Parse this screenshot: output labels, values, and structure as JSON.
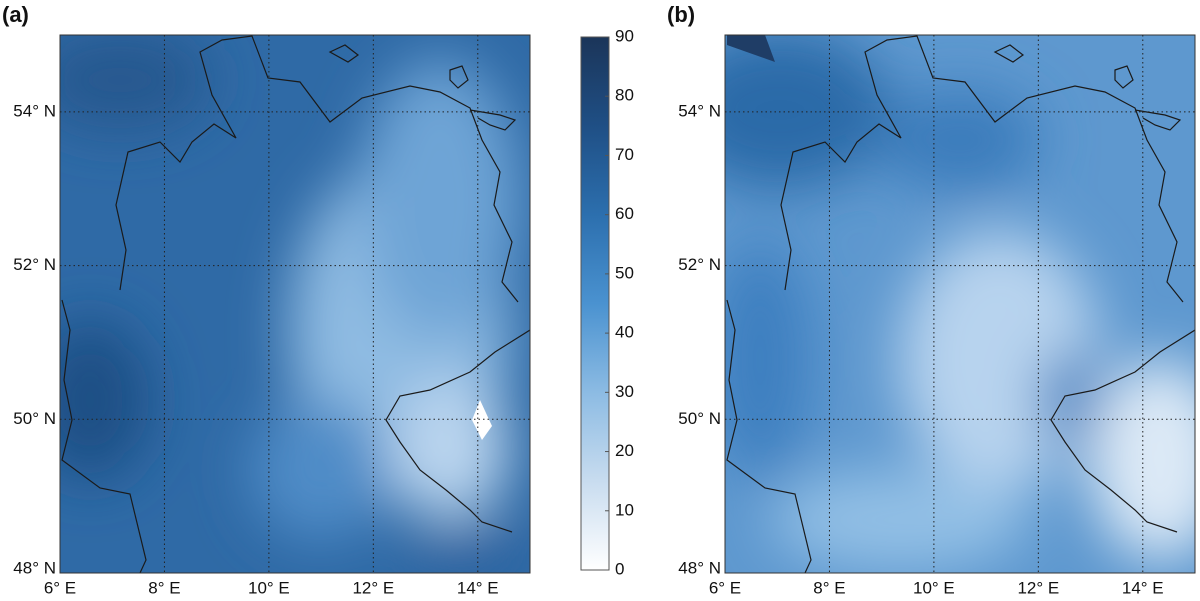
{
  "chart_data": [
    {
      "type": "contour",
      "title": "(a)",
      "xlim": [
        6,
        15
      ],
      "ylim": [
        48,
        55
      ],
      "xticks": [
        {
          "value": 6,
          "label": "6° E"
        },
        {
          "value": 8,
          "label": "8° E"
        },
        {
          "value": 10,
          "label": "10° E"
        },
        {
          "value": 12,
          "label": "12° E"
        },
        {
          "value": 14,
          "label": "14° E"
        }
      ],
      "yticks": [
        {
          "value": 48,
          "label": "48° N"
        },
        {
          "value": 50,
          "label": "50° N"
        },
        {
          "value": 52,
          "label": "52° N"
        },
        {
          "value": 54,
          "label": "54° N"
        }
      ],
      "grid": true,
      "colorbar": {
        "lim": [
          0,
          90
        ],
        "ticks": [
          0,
          10,
          20,
          30,
          40,
          50,
          60,
          70,
          80,
          90
        ],
        "colors": [
          "#ffffff",
          "#c8dcef",
          "#8cbbe3",
          "#4a92d0",
          "#2c6fae",
          "#1f4f85",
          "#1b3559"
        ]
      }
    },
    {
      "type": "contour",
      "title": "(b)",
      "xlim": [
        6,
        15
      ],
      "ylim": [
        48,
        55
      ],
      "xticks": [
        {
          "value": 6,
          "label": "6° E"
        },
        {
          "value": 8,
          "label": "8° E"
        },
        {
          "value": 10,
          "label": "10° E"
        },
        {
          "value": 12,
          "label": "12° E"
        },
        {
          "value": 14,
          "label": "14° E"
        }
      ],
      "yticks": [
        {
          "value": 48,
          "label": "48° N"
        },
        {
          "value": 50,
          "label": "50° N"
        },
        {
          "value": 52,
          "label": "52° N"
        },
        {
          "value": 54,
          "label": "54° N"
        }
      ],
      "grid": true
    }
  ]
}
